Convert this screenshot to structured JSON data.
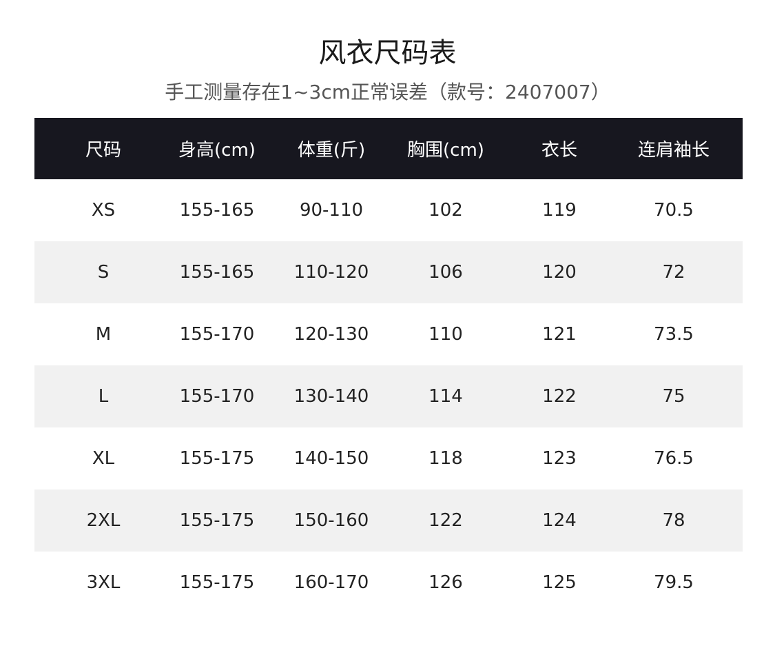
{
  "title": "风衣尺码表",
  "subtitle": "手工测量存在1~3cm正常误差（款号：2407007）",
  "colors": {
    "header_bg": "#17171f",
    "header_text": "#ffffff",
    "alt_row_bg": "#f1f1f1"
  },
  "table": {
    "headers": [
      "尺码",
      "身高(cm)",
      "体重(斤)",
      "胸围(cm)",
      "衣长",
      "连肩袖长"
    ],
    "rows": [
      [
        "XS",
        "155-165",
        "90-110",
        "102",
        "119",
        "70.5"
      ],
      [
        "S",
        "155-165",
        "110-120",
        "106",
        "120",
        "72"
      ],
      [
        "M",
        "155-170",
        "120-130",
        "110",
        "121",
        "73.5"
      ],
      [
        "L",
        "155-170",
        "130-140",
        "114",
        "122",
        "75"
      ],
      [
        "XL",
        "155-175",
        "140-150",
        "118",
        "123",
        "76.5"
      ],
      [
        "2XL",
        "155-175",
        "150-160",
        "122",
        "124",
        "78"
      ],
      [
        "3XL",
        "155-175",
        "160-170",
        "126",
        "125",
        "79.5"
      ]
    ]
  }
}
